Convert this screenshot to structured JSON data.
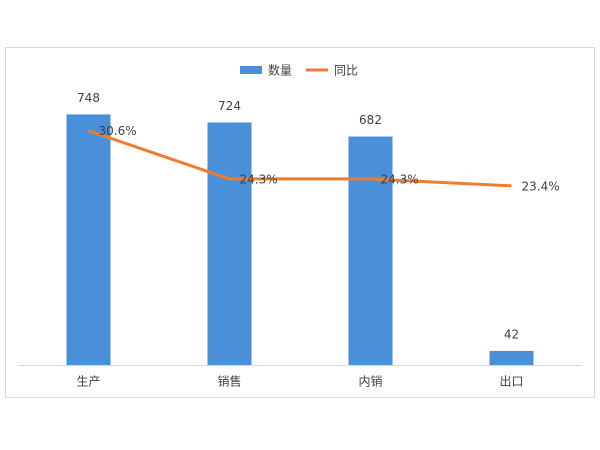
{
  "chart_data": {
    "type": "bar-line",
    "categories": [
      "生产",
      "销售",
      "内销",
      "出口"
    ],
    "series": [
      {
        "name": "数量",
        "color": "#4a90d9",
        "type": "bar",
        "values": [
          748,
          724,
          682,
          42
        ]
      },
      {
        "name": "同比",
        "color": "#ed7d31",
        "type": "line",
        "axis": "y2",
        "values": [
          30.6,
          24.3,
          24.3,
          23.4
        ],
        "value_labels": [
          "30.6%",
          "24.3%",
          "24.3%",
          "23.4%"
        ]
      }
    ],
    "ylim": [
      0,
      800
    ],
    "y2lim": [
      0,
      35
    ],
    "legend": "top"
  }
}
